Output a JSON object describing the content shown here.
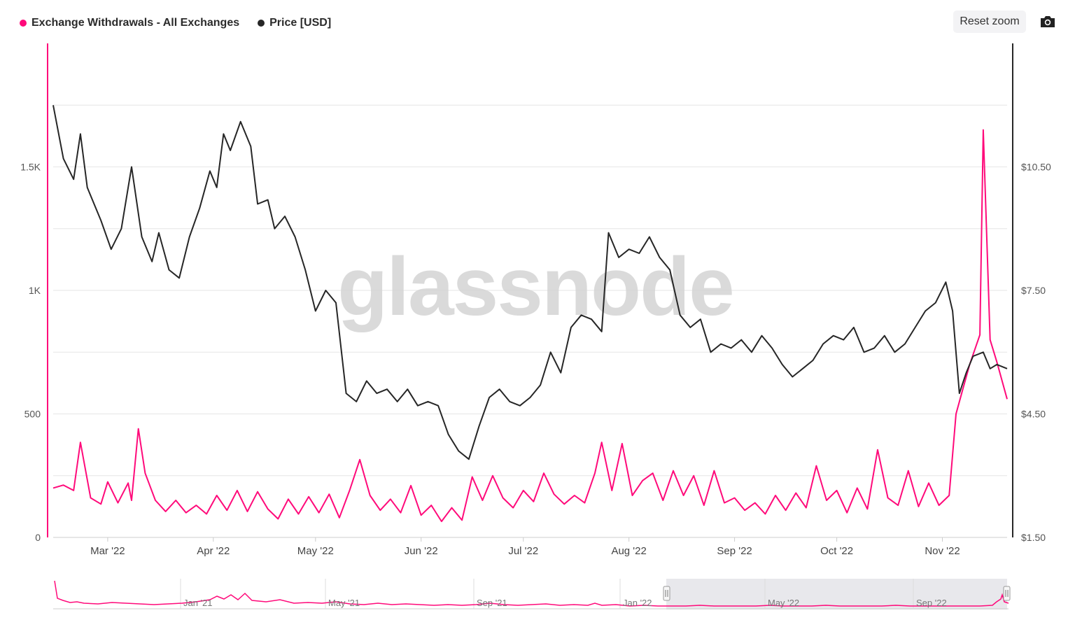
{
  "legend": {
    "withdrawals_label": "Exchange Withdrawals - All Exchanges",
    "price_label": "Price [USD]"
  },
  "toolbar": {
    "reset_zoom_label": "Reset zoom",
    "export_icon": "camera-icon"
  },
  "watermark": "glassnode",
  "colors": {
    "withdrawals": "#ff0a7a",
    "price": "#262626",
    "grid": "#e6e6e6",
    "navigator_mask": "#e8e8ec"
  },
  "navigator": {
    "labels": [
      "Jan '21",
      "May '21",
      "Sep '21",
      "Jan '22",
      "May '22",
      "Sep '22"
    ]
  },
  "chart_data": {
    "type": "line",
    "x_start": "2022-02-13",
    "x_end": "2022-11-20",
    "x_tick_labels": [
      "Mar '22",
      "Apr '22",
      "May '22",
      "Jun '22",
      "Jul '22",
      "Aug '22",
      "Sep '22",
      "Oct '22",
      "Nov '22"
    ],
    "y_left": {
      "range": [
        0,
        2000
      ],
      "ticks": [
        0,
        500,
        1000,
        1500
      ],
      "tick_labels": [
        "0",
        "500",
        "1K",
        "1.5K"
      ]
    },
    "y_right": {
      "range": [
        1.5,
        13.5
      ],
      "ticks": [
        1.5,
        4.5,
        7.5,
        10.5
      ],
      "tick_labels": [
        "$1.50",
        "$4.50",
        "$7.50",
        "$10.50"
      ]
    },
    "series": [
      {
        "name": "Exchange Withdrawals - All Exchanges",
        "axis": "left",
        "points": [
          [
            "2022-02-13",
            200
          ],
          [
            "2022-02-16",
            212
          ],
          [
            "2022-02-19",
            190
          ],
          [
            "2022-02-21",
            385
          ],
          [
            "2022-02-24",
            160
          ],
          [
            "2022-02-27",
            135
          ],
          [
            "2022-03-01",
            225
          ],
          [
            "2022-03-04",
            140
          ],
          [
            "2022-03-07",
            220
          ],
          [
            "2022-03-08",
            150
          ],
          [
            "2022-03-10",
            440
          ],
          [
            "2022-03-12",
            260
          ],
          [
            "2022-03-15",
            150
          ],
          [
            "2022-03-18",
            105
          ],
          [
            "2022-03-21",
            150
          ],
          [
            "2022-03-24",
            100
          ],
          [
            "2022-03-27",
            130
          ],
          [
            "2022-03-30",
            95
          ],
          [
            "2022-04-02",
            170
          ],
          [
            "2022-04-05",
            110
          ],
          [
            "2022-04-08",
            190
          ],
          [
            "2022-04-11",
            105
          ],
          [
            "2022-04-14",
            185
          ],
          [
            "2022-04-17",
            115
          ],
          [
            "2022-04-20",
            75
          ],
          [
            "2022-04-23",
            155
          ],
          [
            "2022-04-26",
            95
          ],
          [
            "2022-04-29",
            165
          ],
          [
            "2022-05-02",
            100
          ],
          [
            "2022-05-05",
            175
          ],
          [
            "2022-05-08",
            80
          ],
          [
            "2022-05-11",
            190
          ],
          [
            "2022-05-14",
            315
          ],
          [
            "2022-05-17",
            170
          ],
          [
            "2022-05-20",
            110
          ],
          [
            "2022-05-23",
            155
          ],
          [
            "2022-05-26",
            100
          ],
          [
            "2022-05-29",
            210
          ],
          [
            "2022-06-01",
            90
          ],
          [
            "2022-06-04",
            130
          ],
          [
            "2022-06-07",
            65
          ],
          [
            "2022-06-10",
            120
          ],
          [
            "2022-06-13",
            70
          ],
          [
            "2022-06-16",
            245
          ],
          [
            "2022-06-19",
            150
          ],
          [
            "2022-06-22",
            250
          ],
          [
            "2022-06-25",
            160
          ],
          [
            "2022-06-28",
            120
          ],
          [
            "2022-07-01",
            190
          ],
          [
            "2022-07-04",
            145
          ],
          [
            "2022-07-07",
            260
          ],
          [
            "2022-07-10",
            175
          ],
          [
            "2022-07-13",
            135
          ],
          [
            "2022-07-16",
            170
          ],
          [
            "2022-07-19",
            140
          ],
          [
            "2022-07-22",
            260
          ],
          [
            "2022-07-24",
            385
          ],
          [
            "2022-07-27",
            190
          ],
          [
            "2022-07-30",
            380
          ],
          [
            "2022-08-02",
            170
          ],
          [
            "2022-08-05",
            230
          ],
          [
            "2022-08-08",
            260
          ],
          [
            "2022-08-11",
            150
          ],
          [
            "2022-08-14",
            270
          ],
          [
            "2022-08-17",
            170
          ],
          [
            "2022-08-20",
            250
          ],
          [
            "2022-08-23",
            130
          ],
          [
            "2022-08-26",
            270
          ],
          [
            "2022-08-29",
            140
          ],
          [
            "2022-09-01",
            160
          ],
          [
            "2022-09-04",
            110
          ],
          [
            "2022-09-07",
            140
          ],
          [
            "2022-09-10",
            95
          ],
          [
            "2022-09-13",
            170
          ],
          [
            "2022-09-16",
            110
          ],
          [
            "2022-09-19",
            180
          ],
          [
            "2022-09-22",
            120
          ],
          [
            "2022-09-25",
            290
          ],
          [
            "2022-09-28",
            150
          ],
          [
            "2022-10-01",
            190
          ],
          [
            "2022-10-04",
            100
          ],
          [
            "2022-10-07",
            200
          ],
          [
            "2022-10-10",
            115
          ],
          [
            "2022-10-13",
            355
          ],
          [
            "2022-10-16",
            160
          ],
          [
            "2022-10-19",
            130
          ],
          [
            "2022-10-22",
            270
          ],
          [
            "2022-10-25",
            125
          ],
          [
            "2022-10-28",
            220
          ],
          [
            "2022-10-31",
            130
          ],
          [
            "2022-11-03",
            170
          ],
          [
            "2022-11-05",
            500
          ],
          [
            "2022-11-07",
            600
          ],
          [
            "2022-11-09",
            700
          ],
          [
            "2022-11-12",
            820
          ],
          [
            "2022-11-13",
            1650
          ],
          [
            "2022-11-15",
            800
          ],
          [
            "2022-11-17",
            710
          ],
          [
            "2022-11-20",
            560
          ]
        ]
      },
      {
        "name": "Price [USD]",
        "axis": "right",
        "points": [
          [
            "2022-02-13",
            12.0
          ],
          [
            "2022-02-16",
            10.7
          ],
          [
            "2022-02-19",
            10.2
          ],
          [
            "2022-02-21",
            11.3
          ],
          [
            "2022-02-23",
            10.0
          ],
          [
            "2022-02-27",
            9.2
          ],
          [
            "2022-03-02",
            8.5
          ],
          [
            "2022-03-05",
            9.0
          ],
          [
            "2022-03-08",
            10.5
          ],
          [
            "2022-03-11",
            8.8
          ],
          [
            "2022-03-14",
            8.2
          ],
          [
            "2022-03-16",
            8.9
          ],
          [
            "2022-03-19",
            8.0
          ],
          [
            "2022-03-22",
            7.8
          ],
          [
            "2022-03-25",
            8.8
          ],
          [
            "2022-03-28",
            9.5
          ],
          [
            "2022-03-31",
            10.4
          ],
          [
            "2022-04-02",
            10.0
          ],
          [
            "2022-04-04",
            11.3
          ],
          [
            "2022-04-06",
            10.9
          ],
          [
            "2022-04-09",
            11.6
          ],
          [
            "2022-04-12",
            11.0
          ],
          [
            "2022-04-14",
            9.6
          ],
          [
            "2022-04-17",
            9.7
          ],
          [
            "2022-04-19",
            9.0
          ],
          [
            "2022-04-22",
            9.3
          ],
          [
            "2022-04-25",
            8.8
          ],
          [
            "2022-04-28",
            8.0
          ],
          [
            "2022-05-01",
            7.0
          ],
          [
            "2022-05-04",
            7.5
          ],
          [
            "2022-05-07",
            7.2
          ],
          [
            "2022-05-10",
            5.0
          ],
          [
            "2022-05-13",
            4.8
          ],
          [
            "2022-05-16",
            5.3
          ],
          [
            "2022-05-19",
            5.0
          ],
          [
            "2022-05-22",
            5.1
          ],
          [
            "2022-05-25",
            4.8
          ],
          [
            "2022-05-28",
            5.1
          ],
          [
            "2022-05-31",
            4.7
          ],
          [
            "2022-06-03",
            4.8
          ],
          [
            "2022-06-06",
            4.7
          ],
          [
            "2022-06-09",
            4.0
          ],
          [
            "2022-06-12",
            3.6
          ],
          [
            "2022-06-15",
            3.4
          ],
          [
            "2022-06-18",
            4.2
          ],
          [
            "2022-06-21",
            4.9
          ],
          [
            "2022-06-24",
            5.1
          ],
          [
            "2022-06-27",
            4.8
          ],
          [
            "2022-06-30",
            4.7
          ],
          [
            "2022-07-03",
            4.9
          ],
          [
            "2022-07-06",
            5.2
          ],
          [
            "2022-07-09",
            6.0
          ],
          [
            "2022-07-12",
            5.5
          ],
          [
            "2022-07-15",
            6.6
          ],
          [
            "2022-07-18",
            6.9
          ],
          [
            "2022-07-21",
            6.8
          ],
          [
            "2022-07-24",
            6.5
          ],
          [
            "2022-07-26",
            8.9
          ],
          [
            "2022-07-29",
            8.3
          ],
          [
            "2022-08-01",
            8.5
          ],
          [
            "2022-08-04",
            8.4
          ],
          [
            "2022-08-07",
            8.8
          ],
          [
            "2022-08-10",
            8.3
          ],
          [
            "2022-08-13",
            8.0
          ],
          [
            "2022-08-16",
            6.9
          ],
          [
            "2022-08-19",
            6.6
          ],
          [
            "2022-08-22",
            6.8
          ],
          [
            "2022-08-25",
            6.0
          ],
          [
            "2022-08-28",
            6.2
          ],
          [
            "2022-08-31",
            6.1
          ],
          [
            "2022-09-03",
            6.3
          ],
          [
            "2022-09-06",
            6.0
          ],
          [
            "2022-09-09",
            6.4
          ],
          [
            "2022-09-12",
            6.1
          ],
          [
            "2022-09-15",
            5.7
          ],
          [
            "2022-09-18",
            5.4
          ],
          [
            "2022-09-21",
            5.6
          ],
          [
            "2022-09-24",
            5.8
          ],
          [
            "2022-09-27",
            6.2
          ],
          [
            "2022-09-30",
            6.4
          ],
          [
            "2022-10-03",
            6.3
          ],
          [
            "2022-10-06",
            6.6
          ],
          [
            "2022-10-09",
            6.0
          ],
          [
            "2022-10-12",
            6.1
          ],
          [
            "2022-10-15",
            6.4
          ],
          [
            "2022-10-18",
            6.0
          ],
          [
            "2022-10-21",
            6.2
          ],
          [
            "2022-10-24",
            6.6
          ],
          [
            "2022-10-27",
            7.0
          ],
          [
            "2022-10-30",
            7.2
          ],
          [
            "2022-11-02",
            7.7
          ],
          [
            "2022-11-04",
            7.0
          ],
          [
            "2022-11-06",
            5.0
          ],
          [
            "2022-11-08",
            5.5
          ],
          [
            "2022-11-10",
            5.9
          ],
          [
            "2022-11-13",
            6.0
          ],
          [
            "2022-11-15",
            5.6
          ],
          [
            "2022-11-17",
            5.7
          ],
          [
            "2022-11-20",
            5.6
          ]
        ]
      }
    ],
    "grid": true,
    "legend_position": "top-left"
  }
}
